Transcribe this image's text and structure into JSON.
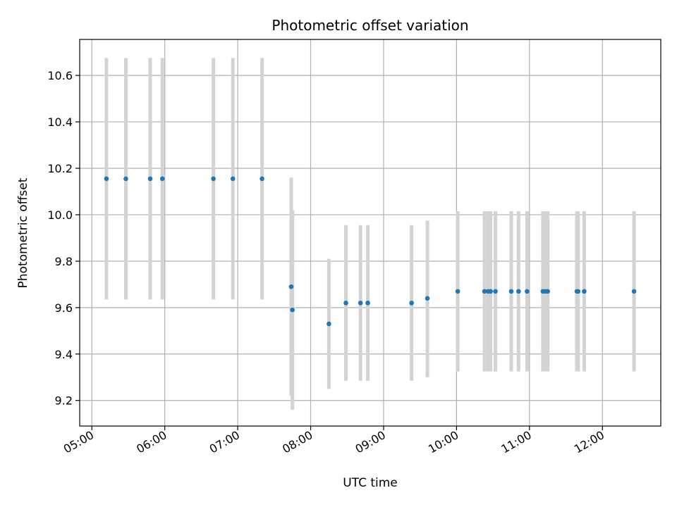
{
  "chart_data": {
    "type": "scatter",
    "title": "Photometric offset variation",
    "xlabel": "UTC time",
    "ylabel": "Photometric offset",
    "xlim": [
      "04:50",
      "12:48"
    ],
    "ylim": [
      9.09,
      10.755
    ],
    "grid": true,
    "x_ticks": [
      "05:00",
      "06:00",
      "07:00",
      "08:00",
      "09:00",
      "10:00",
      "11:00",
      "12:00"
    ],
    "y_ticks": [
      "9.2",
      "9.4",
      "9.6",
      "9.8",
      "10.0",
      "10.2",
      "10.4",
      "10.6"
    ],
    "series_color": "#1f77b4",
    "errorbar_color": "#d3d3d3",
    "points": [
      {
        "t": "05:12",
        "y": 10.155,
        "lo": 9.635,
        "hi": 10.675
      },
      {
        "t": "05:28",
        "y": 10.155,
        "lo": 9.635,
        "hi": 10.675
      },
      {
        "t": "05:48",
        "y": 10.155,
        "lo": 9.635,
        "hi": 10.675
      },
      {
        "t": "05:58",
        "y": 10.155,
        "lo": 9.635,
        "hi": 10.675
      },
      {
        "t": "06:40",
        "y": 10.155,
        "lo": 9.635,
        "hi": 10.675
      },
      {
        "t": "06:56",
        "y": 10.155,
        "lo": 9.635,
        "hi": 10.675
      },
      {
        "t": "07:20",
        "y": 10.155,
        "lo": 9.635,
        "hi": 10.675
      },
      {
        "t": "07:44",
        "y": 9.69,
        "lo": 9.22,
        "hi": 10.16
      },
      {
        "t": "07:45",
        "y": 9.59,
        "lo": 9.16,
        "hi": 10.02
      },
      {
        "t": "08:15",
        "y": 9.53,
        "lo": 9.25,
        "hi": 9.81
      },
      {
        "t": "08:29",
        "y": 9.62,
        "lo": 9.285,
        "hi": 9.955
      },
      {
        "t": "08:41",
        "y": 9.62,
        "lo": 9.285,
        "hi": 9.955
      },
      {
        "t": "08:47",
        "y": 9.62,
        "lo": 9.285,
        "hi": 9.955
      },
      {
        "t": "09:23",
        "y": 9.62,
        "lo": 9.285,
        "hi": 9.955
      },
      {
        "t": "09:36",
        "y": 9.64,
        "lo": 9.3,
        "hi": 9.975
      },
      {
        "t": "10:01",
        "y": 9.67,
        "lo": 9.325,
        "hi": 10.015
      },
      {
        "t": "10:23",
        "y": 9.67,
        "lo": 9.325,
        "hi": 10.015
      },
      {
        "t": "10:26",
        "y": 9.67,
        "lo": 9.325,
        "hi": 10.015
      },
      {
        "t": "10:28",
        "y": 9.67,
        "lo": 9.325,
        "hi": 10.015
      },
      {
        "t": "10:32",
        "y": 9.67,
        "lo": 9.325,
        "hi": 10.015
      },
      {
        "t": "10:45",
        "y": 9.67,
        "lo": 9.325,
        "hi": 10.015
      },
      {
        "t": "10:51",
        "y": 9.67,
        "lo": 9.325,
        "hi": 10.015
      },
      {
        "t": "10:58",
        "y": 9.67,
        "lo": 9.325,
        "hi": 10.015
      },
      {
        "t": "11:11",
        "y": 9.67,
        "lo": 9.325,
        "hi": 10.015
      },
      {
        "t": "11:13",
        "y": 9.67,
        "lo": 9.325,
        "hi": 10.015
      },
      {
        "t": "11:15",
        "y": 9.67,
        "lo": 9.325,
        "hi": 10.015
      },
      {
        "t": "11:39",
        "y": 9.67,
        "lo": 9.325,
        "hi": 10.015
      },
      {
        "t": "11:40",
        "y": 9.67,
        "lo": 9.325,
        "hi": 10.015
      },
      {
        "t": "11:45",
        "y": 9.67,
        "lo": 9.325,
        "hi": 10.015
      },
      {
        "t": "12:26",
        "y": 9.67,
        "lo": 9.325,
        "hi": 10.015
      }
    ]
  }
}
